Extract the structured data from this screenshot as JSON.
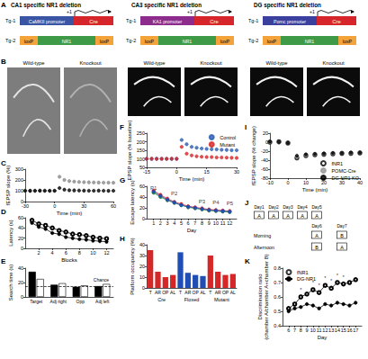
{
  "constructs": {
    "panel": "A",
    "cre_color": "#d7262b",
    "part_colors": [
      "#f4a23a",
      "#3f9a47",
      "#f4a23a"
    ],
    "columns": [
      {
        "title": "CA1 specific NR1 deletion",
        "tg1": "Tg-1",
        "promoter": "CaMKII promoter",
        "promoter_color": "#3a55a4",
        "cre": "Cre",
        "start": "+1",
        "tg2": "Tg-2",
        "parts": [
          "loxP",
          "NR1",
          "loxP"
        ]
      },
      {
        "title": "CA3 specific NR1 deletion",
        "tg1": "Tg-1",
        "promoter": "KA1 promoter",
        "promoter_color": "#8e2c8e",
        "cre": "Cre",
        "start": "+1",
        "tg2": "Tg-2",
        "parts": [
          "loxP",
          "NR1",
          "loxP"
        ]
      },
      {
        "title": "DG specific NR1 deletion",
        "tg1": "Tg-1",
        "promoter": "Pomc promoter",
        "promoter_color": "#3b3f9e",
        "cre": "Cre",
        "start": "+1",
        "tg2": "Tg-2",
        "parts": [
          "loxP",
          "NR1",
          "loxP"
        ]
      }
    ]
  },
  "images": {
    "panel": "B",
    "groups": [
      {
        "labels": [
          "Wild-type",
          "Knockout"
        ],
        "style": "gray"
      },
      {
        "labels": [
          "Wild-type",
          "Knockout"
        ],
        "style": "dark"
      },
      {
        "labels": [
          "Wild-type",
          "Knockout"
        ],
        "style": "dark"
      }
    ]
  },
  "schedule": {
    "panel": "J",
    "first_days": [
      "Day1",
      "Day2",
      "Day3",
      "Day4",
      "Day5"
    ],
    "first_boxes": [
      "A",
      "A",
      "A",
      "A",
      "A"
    ],
    "later_days": [
      "Day6",
      "Day7"
    ],
    "sessions": [
      {
        "label": "Morning",
        "boxes": [
          "A",
          "B"
        ]
      },
      {
        "label": "Afternoon",
        "boxes": [
          "B",
          "A"
        ]
      }
    ]
  },
  "chart_data": [
    {
      "panel": "C",
      "type": "scatter",
      "xlabel": "Time (min)",
      "ylabel": "fEPSP slope (%)",
      "grid": false,
      "x": [
        -30,
        -25,
        -20,
        -15,
        -10,
        -5,
        0,
        5,
        10,
        15,
        20,
        25,
        30,
        35,
        40,
        45,
        50,
        55,
        60
      ],
      "xlim": [
        -30,
        60
      ],
      "xticks": [
        -30,
        0,
        30,
        60
      ],
      "ylim": [
        0,
        300
      ],
      "yticks": [
        0,
        100,
        200,
        300
      ],
      "series": [
        {
          "color": "#888888",
          "marker": "circle",
          "values": [
            100,
            101,
            99,
            100,
            100,
            99,
            100,
            230,
            200,
            190,
            185,
            182,
            180,
            178,
            177,
            176,
            175,
            175,
            174
          ]
        },
        {
          "color": "#000000",
          "marker": "circle",
          "values": [
            100,
            99,
            100,
            101,
            100,
            100,
            100,
            125,
            110,
            105,
            103,
            102,
            101,
            100,
            100,
            101,
            100,
            99,
            100
          ]
        }
      ]
    },
    {
      "panel": "D",
      "type": "line",
      "xlabel": "Blocks",
      "ylabel": "Latency (s)",
      "grid": false,
      "x": [
        1,
        2,
        3,
        4,
        5,
        6,
        7,
        8,
        9,
        10,
        11,
        12
      ],
      "xlim": [
        0,
        13
      ],
      "xticks": [
        2,
        4,
        6,
        8,
        10,
        12
      ],
      "ylim": [
        0,
        60
      ],
      "yticks": [
        0,
        20,
        40,
        60
      ],
      "series": [
        {
          "color": "#000000",
          "marker": "circle",
          "values": [
            50,
            42,
            38,
            30,
            28,
            22,
            20,
            18,
            17,
            15,
            14,
            13
          ]
        },
        {
          "color": "#000000",
          "marker": "open_circle",
          "values": [
            55,
            48,
            45,
            40,
            35,
            32,
            28,
            27,
            25,
            22,
            20,
            19
          ]
        }
      ]
    },
    {
      "panel": "E",
      "type": "bar",
      "ylabel": "Search time (s)",
      "grid": false,
      "categories": [
        "Target",
        "Adj right",
        "Opp",
        "Adj left"
      ],
      "ylim": [
        0,
        40
      ],
      "yticks": [
        0,
        20,
        40
      ],
      "reference": {
        "label": "Chance",
        "value": 15
      },
      "series": [
        {
          "color": "#000000",
          "values": [
            35,
            17,
            14,
            15
          ]
        },
        {
          "color": "#ffffff",
          "values": [
            25,
            19,
            16,
            18
          ]
        }
      ]
    },
    {
      "panel": "F",
      "type": "scatter",
      "xlabel": "Time (min)",
      "ylabel": "EPSP slope (% baseline)",
      "grid": false,
      "legend": "upper right",
      "x": [
        -15,
        -12.5,
        -10,
        -7.5,
        -5,
        -2.5,
        0,
        2.5,
        5,
        7.5,
        10,
        12.5,
        15,
        17.5,
        20,
        22.5,
        25,
        27.5,
        30
      ],
      "xlim": [
        -15,
        30
      ],
      "xticks": [
        -15,
        0,
        15,
        30
      ],
      "ylim": [
        50,
        250
      ],
      "yticks": [
        50,
        100,
        150,
        200,
        250
      ],
      "series": [
        {
          "name": "Control",
          "color": "#2a5db0",
          "marker": "circle",
          "values": [
            100,
            99,
            101,
            100,
            100,
            99,
            100,
            210,
            185,
            170,
            165,
            160,
            158,
            156,
            155,
            153,
            152,
            150,
            150
          ]
        },
        {
          "name": "Mutant",
          "color": "#d62728",
          "marker": "circle",
          "values": [
            100,
            101,
            99,
            100,
            100,
            101,
            100,
            170,
            130,
            120,
            115,
            112,
            110,
            110,
            108,
            108,
            107,
            106,
            105
          ]
        }
      ]
    },
    {
      "panel": "G",
      "type": "line",
      "xlabel": "Day",
      "ylabel": "Escape latency (s)",
      "grid": false,
      "x": [
        1,
        2,
        3,
        4,
        5,
        6,
        7,
        8,
        9,
        10,
        11,
        12
      ],
      "xlim": [
        0,
        13
      ],
      "xticks": [
        1,
        2,
        3,
        4,
        5,
        6,
        7,
        8,
        9,
        10,
        11,
        12
      ],
      "ylim": [
        0,
        60
      ],
      "yticks": [
        0,
        20,
        40,
        60
      ],
      "annotations": [
        {
          "text": "P1",
          "x": 1,
          "y": 57
        },
        {
          "text": "P2",
          "x": 4,
          "y": 47
        },
        {
          "text": "P3",
          "x": 8,
          "y": 32
        },
        {
          "text": "P4",
          "x": 10,
          "y": 30
        },
        {
          "text": "P5",
          "x": 12,
          "y": 28
        }
      ],
      "series": [
        {
          "color": "#2e8b3e",
          "marker": "circle",
          "values": [
            48,
            40,
            34,
            29,
            25,
            21,
            19,
            17,
            15,
            14,
            13,
            12
          ]
        },
        {
          "color": "#d62728",
          "marker": "circle",
          "values": [
            52,
            44,
            37,
            31,
            27,
            23,
            21,
            19,
            17,
            16,
            15,
            14
          ]
        },
        {
          "color": "#1f4fb4",
          "marker": "circle",
          "values": [
            50,
            42,
            35,
            30,
            25,
            22,
            20,
            18,
            16,
            15,
            14,
            13
          ]
        }
      ]
    },
    {
      "panel": "H",
      "type": "bar",
      "ylabel": "Platform occupancy (%)",
      "grid": false,
      "categories": [
        "T",
        "AR",
        "OP",
        "AL",
        "T",
        "AR",
        "OP",
        "AL",
        "T",
        "AR",
        "OP",
        "AL"
      ],
      "groups": [
        "Cre",
        "Floxed",
        "Mutant"
      ],
      "ylim": [
        0,
        40
      ],
      "yticks": [
        0,
        10,
        20,
        30,
        40
      ],
      "values": [
        35,
        15,
        10,
        12,
        33,
        14,
        12,
        11,
        30,
        15,
        12,
        13
      ],
      "colors": [
        "#d62728",
        "#d62728",
        "#d62728",
        "#d62728",
        "#1f4fb4",
        "#1f4fb4",
        "#1f4fb4",
        "#1f4fb4",
        "#d62728",
        "#d62728",
        "#d62728",
        "#d62728"
      ]
    },
    {
      "panel": "I",
      "type": "scatter",
      "xlabel": "Time (min)",
      "ylabel": "fEPSP slope (% change)",
      "grid": false,
      "legend": "lower right",
      "x": [
        -10,
        -5,
        0,
        5,
        10,
        15,
        20,
        25,
        30,
        35,
        40
      ],
      "xlim": [
        -10,
        40
      ],
      "xticks": [
        -10,
        0,
        10,
        20,
        30,
        40
      ],
      "ylim": [
        -80,
        20
      ],
      "yticks": [
        -80,
        -60,
        -40,
        -20,
        0,
        20
      ],
      "series": [
        {
          "name": "fNR1",
          "color": "#000000",
          "marker": "open_circle",
          "values": [
            0,
            1,
            -2,
            -35,
            -30,
            -28,
            -27,
            -26,
            -25,
            -25,
            -24
          ]
        },
        {
          "name": "POMC-Cre",
          "color": "#999999",
          "marker": "circle",
          "values": [
            0,
            -1,
            0,
            -33,
            -29,
            -27,
            -26,
            -25,
            -24,
            -24,
            -23
          ]
        },
        {
          "name": "DG-NR1 KO",
          "color": "#000000",
          "marker": "circle",
          "values": [
            1,
            0,
            -1,
            -30,
            -27,
            -26,
            -25,
            -24,
            -24,
            -23,
            -23
          ]
        }
      ]
    },
    {
      "panel": "K",
      "type": "line",
      "xlabel": "Day",
      "ylabel": "Discrimination ratio\n(chamber A/chamber A+chamber B)",
      "grid": false,
      "legend": "upper left",
      "x": [
        6,
        7,
        8,
        9,
        10,
        11,
        12,
        13,
        14,
        15,
        16,
        17
      ],
      "xlim": [
        5,
        18
      ],
      "xticks": [
        6,
        7,
        8,
        9,
        10,
        11,
        12,
        13,
        14,
        15,
        16,
        17
      ],
      "ylim": [
        0.4,
        0.8
      ],
      "yticks": [
        0.4,
        0.5,
        0.6,
        0.7,
        0.8
      ],
      "annotations": [
        {
          "text": "*",
          "x": 8,
          "y": 0.65
        },
        {
          "text": "*",
          "x": 10,
          "y": 0.7
        },
        {
          "text": "*",
          "x": 11,
          "y": 0.68
        },
        {
          "text": "*",
          "x": 12,
          "y": 0.73
        },
        {
          "text": "*",
          "x": 13,
          "y": 0.71
        },
        {
          "text": "*",
          "x": 14,
          "y": 0.75
        },
        {
          "text": "*",
          "x": 15,
          "y": 0.74
        }
      ],
      "series": [
        {
          "name": "fNR1",
          "color": "#000000",
          "marker": "open_circle",
          "values": [
            0.52,
            0.55,
            0.6,
            0.62,
            0.65,
            0.63,
            0.68,
            0.66,
            0.7,
            0.69,
            0.7,
            0.72
          ]
        },
        {
          "name": "DG-NR1",
          "color": "#000000",
          "marker": "circle",
          "values": [
            0.5,
            0.52,
            0.53,
            0.55,
            0.54,
            0.52,
            0.55,
            0.54,
            0.56,
            0.55,
            0.54,
            0.56
          ]
        }
      ]
    }
  ]
}
